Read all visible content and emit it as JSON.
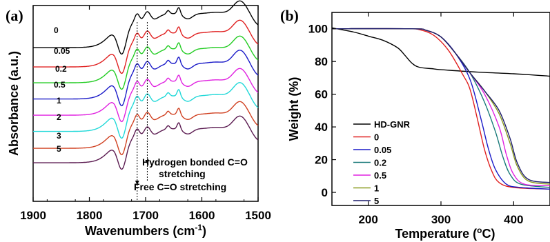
{
  "chart_data": [
    {
      "panel": "(a)",
      "type": "line",
      "xlabel": "Wavenumbers (cm",
      "xlabel_sup": "-1",
      "xlabel_end": ")",
      "ylabel": "Absorbance (a.u.)",
      "xlim": [
        1900,
        1500
      ],
      "xticks": [
        1900,
        1800,
        1700,
        1600,
        1500
      ],
      "y_ticks_shown": false,
      "series": [
        {
          "name": "0",
          "color": "#000000",
          "offset": 0
        },
        {
          "name": "0.05",
          "color": "#e02020",
          "offset": 1
        },
        {
          "name": "0.2",
          "color": "#22cc22",
          "offset": 2
        },
        {
          "name": "0.5",
          "color": "#1a1ac8",
          "offset": 3
        },
        {
          "name": "1",
          "color": "#e020e0",
          "offset": 4
        },
        {
          "name": "2",
          "color": "#20d8d8",
          "offset": 5
        },
        {
          "name": "3",
          "color": "#d04020",
          "offset": 6
        },
        {
          "name": "5",
          "color": "#5a1a50",
          "offset": 7
        }
      ],
      "peaks": [
        1740,
        1715,
        1695,
        1660,
        1640,
        1530
      ],
      "annotations": [
        {
          "text_lines": [
            "Hydrogen bonded C=O",
            "stretching"
          ],
          "x": 1697
        },
        {
          "text_lines": [
            "Free C=O stretching"
          ],
          "x": 1715
        }
      ]
    },
    {
      "panel": "(b)",
      "type": "line",
      "xlabel": "Temperature (",
      "xlabel_sup": "o",
      "xlabel_end": "C)",
      "ylabel": "Weight (%)",
      "xlim": [
        150,
        450
      ],
      "ylim": [
        -8,
        110
      ],
      "xticks": [
        200,
        300,
        400
      ],
      "yticks": [
        0,
        20,
        40,
        60,
        80,
        100
      ],
      "legend_position": "bottom-left",
      "series": [
        {
          "name": "HD-GNR",
          "color": "#000000",
          "points": [
            [
              150,
              100.5
            ],
            [
              180,
              98
            ],
            [
              200,
              95.5
            ],
            [
              220,
              93
            ],
            [
              240,
              88.5
            ],
            [
              250,
              84
            ],
            [
              260,
              79
            ],
            [
              270,
              76.5
            ],
            [
              290,
              75.5
            ],
            [
              300,
              75
            ],
            [
              350,
              73.5
            ],
            [
              400,
              72.5
            ],
            [
              450,
              71
            ]
          ]
        },
        {
          "name": "0",
          "color": "#e02020",
          "points": [
            [
              150,
              100
            ],
            [
              250,
              100
            ],
            [
              270,
              99.5
            ],
            [
              290,
              96
            ],
            [
              310,
              87
            ],
            [
              330,
              72
            ],
            [
              340,
              63
            ],
            [
              350,
              45
            ],
            [
              360,
              26
            ],
            [
              370,
              13
            ],
            [
              380,
              6
            ],
            [
              400,
              3
            ],
            [
              450,
              2
            ]
          ]
        },
        {
          "name": "0.05",
          "color": "#1a1ac8",
          "points": [
            [
              150,
              100
            ],
            [
              260,
              100
            ],
            [
              280,
              99
            ],
            [
              300,
              95
            ],
            [
              320,
              85
            ],
            [
              340,
              69
            ],
            [
              355,
              45
            ],
            [
              365,
              27
            ],
            [
              375,
              14
            ],
            [
              390,
              5
            ],
            [
              410,
              3
            ],
            [
              450,
              2
            ]
          ]
        },
        {
          "name": "0.2",
          "color": "#1a7a7a",
          "points": [
            [
              150,
              100
            ],
            [
              260,
              100
            ],
            [
              280,
              99
            ],
            [
              300,
              95
            ],
            [
              320,
              85
            ],
            [
              340,
              73
            ],
            [
              360,
              55
            ],
            [
              375,
              37
            ],
            [
              385,
              22
            ],
            [
              395,
              11
            ],
            [
              410,
              5
            ],
            [
              450,
              3
            ]
          ]
        },
        {
          "name": "0.5",
          "color": "#e020e0",
          "points": [
            [
              150,
              100
            ],
            [
              260,
              100
            ],
            [
              280,
              99
            ],
            [
              300,
              95
            ],
            [
              320,
              85
            ],
            [
              340,
              73
            ],
            [
              360,
              60
            ],
            [
              380,
              40
            ],
            [
              390,
              23
            ],
            [
              400,
              11
            ],
            [
              415,
              5
            ],
            [
              450,
              4
            ]
          ]
        },
        {
          "name": "1",
          "color": "#8a9a20",
          "points": [
            [
              150,
              100
            ],
            [
              260,
              100
            ],
            [
              280,
              99
            ],
            [
              300,
              95
            ],
            [
              320,
              85
            ],
            [
              340,
              73
            ],
            [
              360,
              62
            ],
            [
              380,
              48
            ],
            [
              395,
              30
            ],
            [
              405,
              16
            ],
            [
              420,
              7
            ],
            [
              450,
              5
            ]
          ]
        },
        {
          "name": "5",
          "color": "#1a1a6a",
          "points": [
            [
              150,
              100
            ],
            [
              260,
              100
            ],
            [
              280,
              99
            ],
            [
              300,
              95
            ],
            [
              320,
              85
            ],
            [
              340,
              73
            ],
            [
              360,
              62
            ],
            [
              380,
              50
            ],
            [
              395,
              33
            ],
            [
              405,
              18
            ],
            [
              420,
              8
            ],
            [
              450,
              6
            ]
          ]
        }
      ]
    }
  ]
}
